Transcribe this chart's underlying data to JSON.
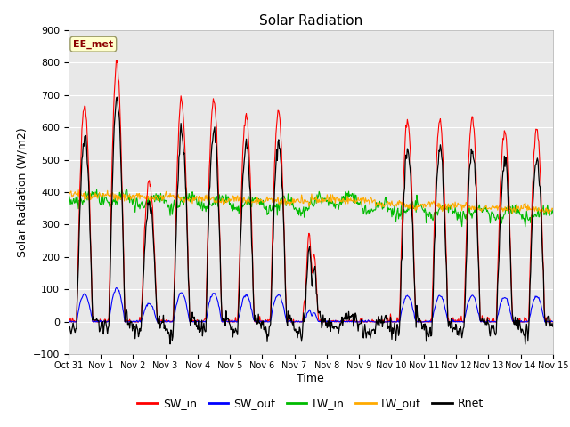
{
  "title": "Solar Radiation",
  "xlabel": "Time",
  "ylabel": "Solar Radiation (W/m2)",
  "ylim": [
    -100,
    900
  ],
  "yticks": [
    -100,
    0,
    100,
    200,
    300,
    400,
    500,
    600,
    700,
    800,
    900
  ],
  "annotation": "EE_met",
  "legend_labels": [
    "SW_in",
    "SW_out",
    "LW_in",
    "LW_out",
    "Rnet"
  ],
  "legend_colors": [
    "#ff0000",
    "#0000ff",
    "#00bb00",
    "#ffaa00",
    "#000000"
  ],
  "background_color": "#e8e8e8",
  "line_colors": {
    "SW_in": "#ff0000",
    "SW_out": "#0000ff",
    "LW_in": "#00bb00",
    "LW_out": "#ffaa00",
    "Rnet": "#000000"
  },
  "xtick_labels": [
    "Oct 31",
    "Nov 1",
    "Nov 2",
    "Nov 3",
    "Nov 4",
    "Nov 5",
    "Nov 6",
    "Nov 7",
    "Nov 8",
    "Nov 9",
    "Nov 10",
    "Nov 11",
    "Nov 12",
    "Nov 13",
    "Nov 14",
    "Nov 15"
  ],
  "xtick_positions": [
    0,
    1,
    2,
    3,
    4,
    5,
    6,
    7,
    8,
    9,
    10,
    11,
    12,
    13,
    14,
    15
  ]
}
